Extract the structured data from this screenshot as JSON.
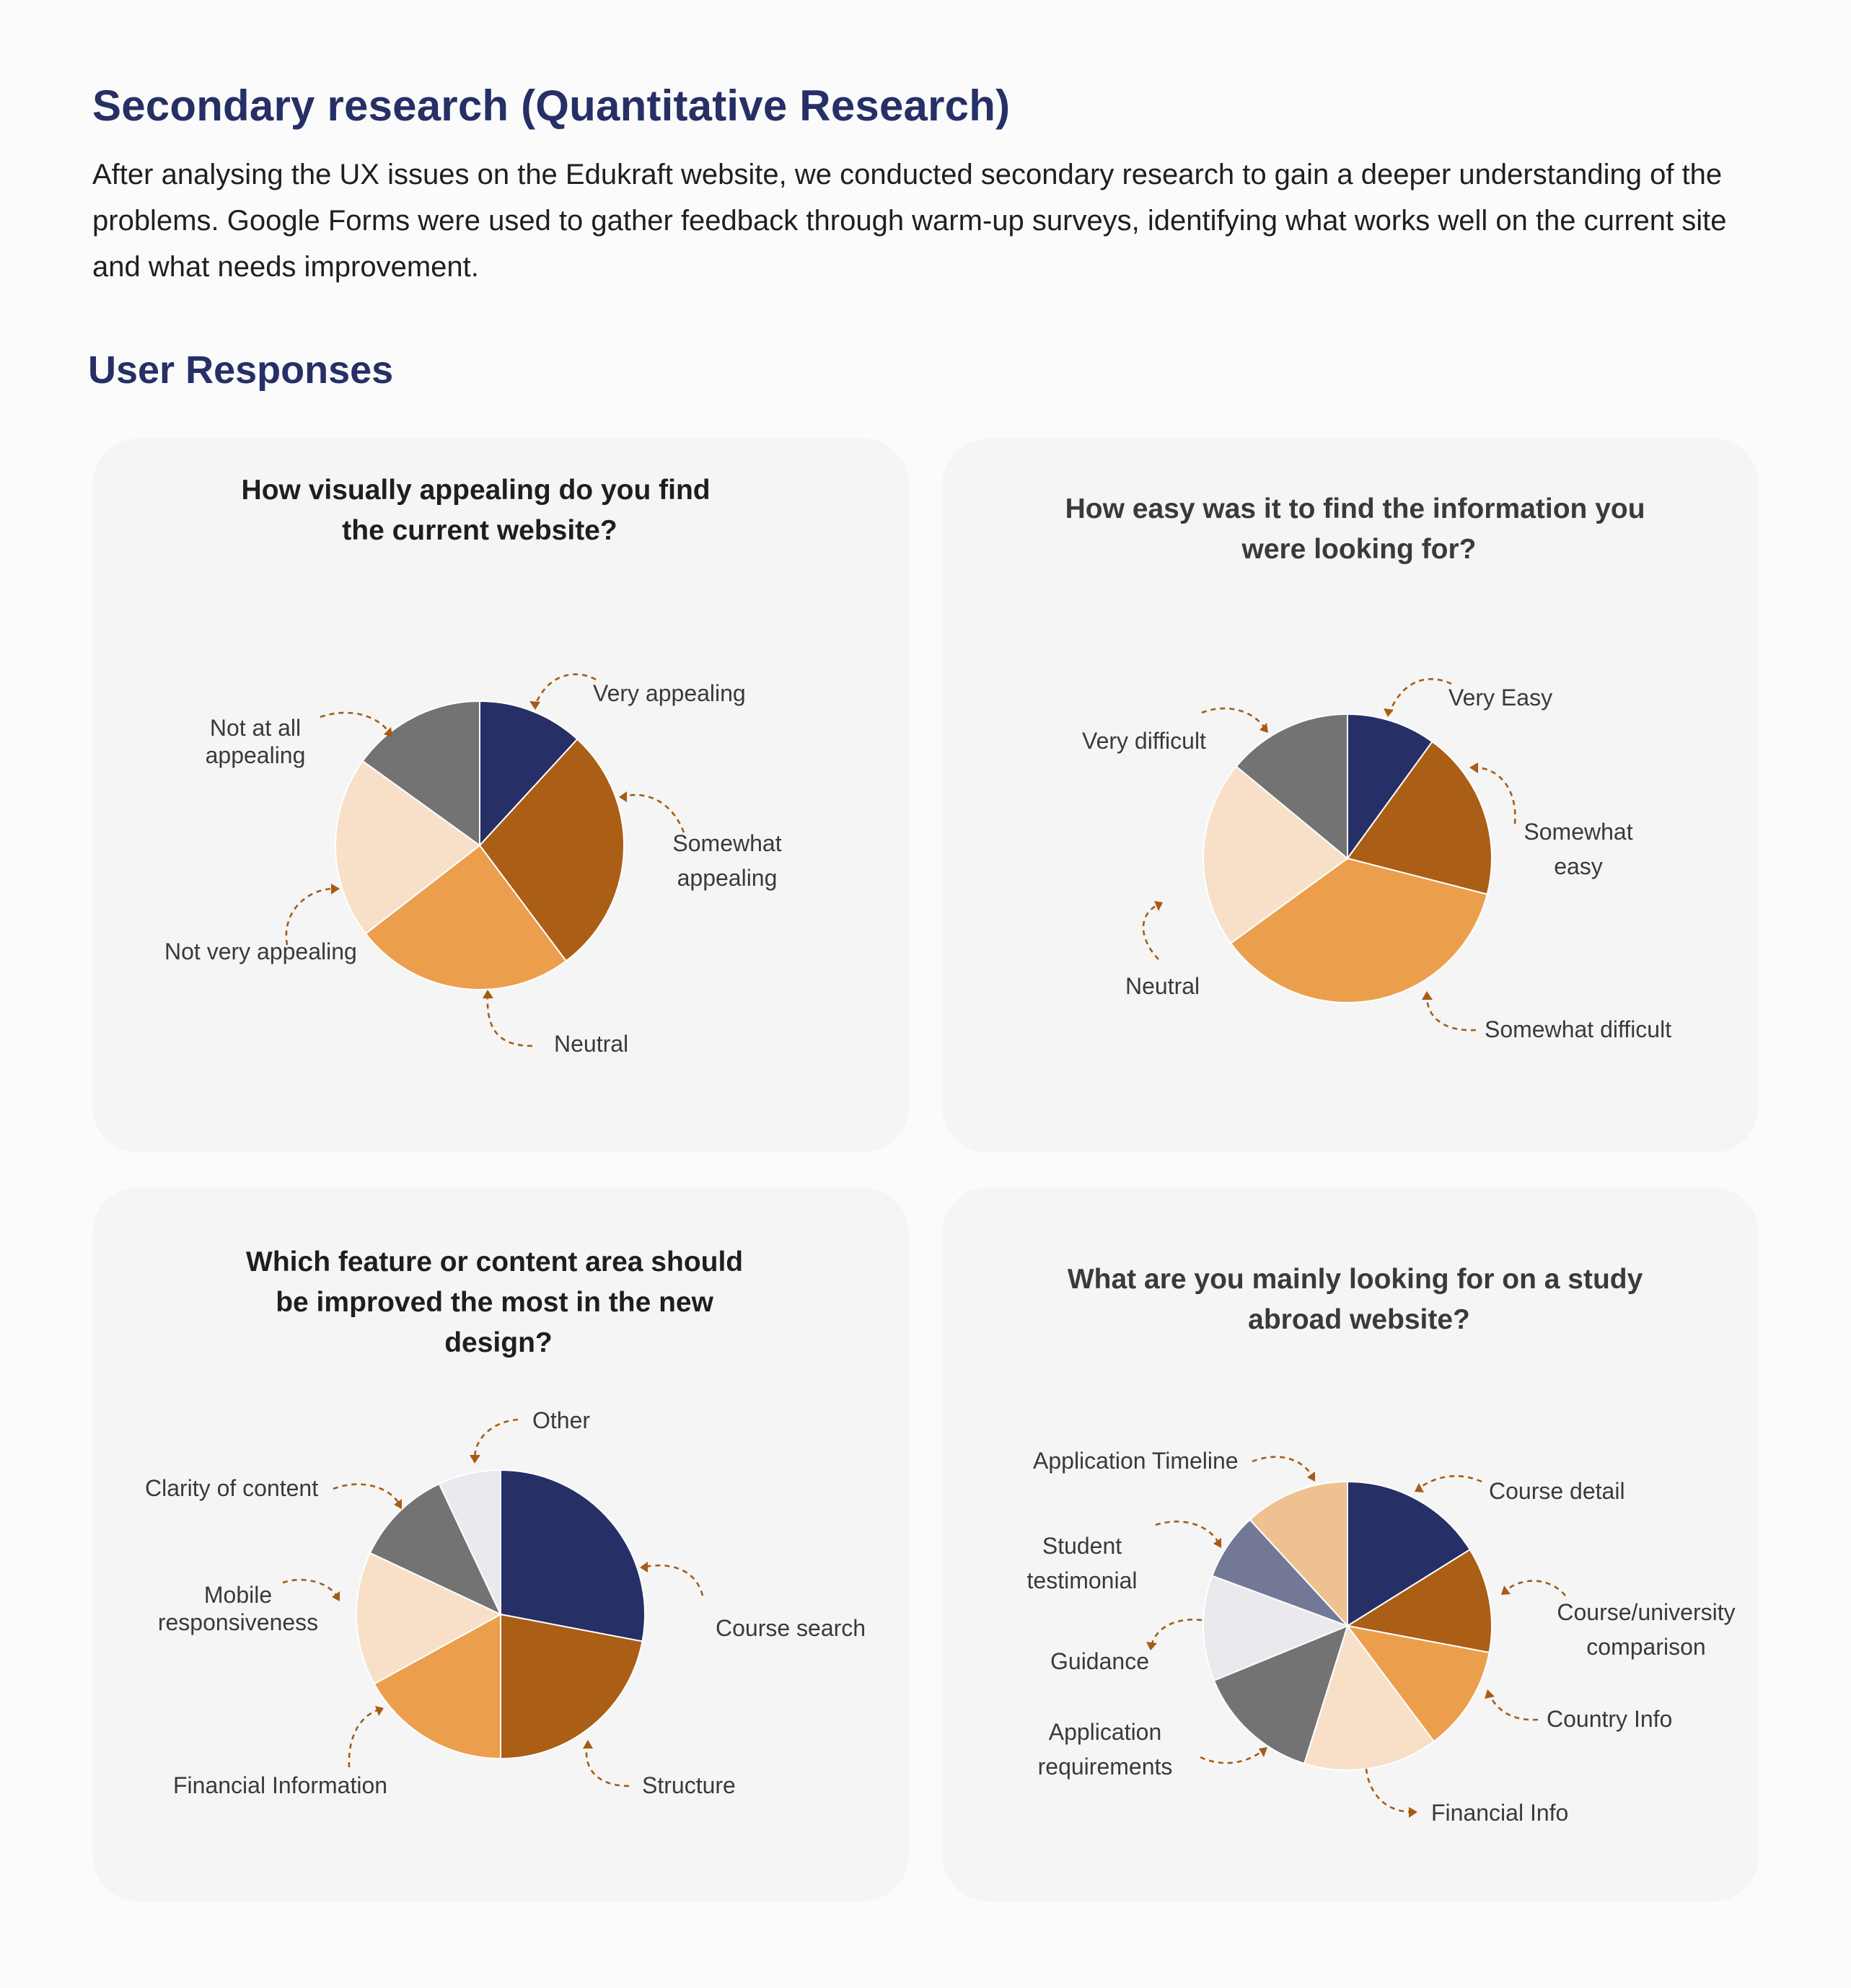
{
  "page": {
    "title": "Secondary research (Quantitative Research)",
    "intro": "After analysing the UX issues on the Edukraft website, we conducted secondary research to gain a deeper understanding of the problems. Google Forms were used to gather feedback through warm-up surveys, identifying what works well on the current site and what needs improvement.",
    "section_title": "User Responses"
  },
  "colors": {
    "navy": "#262f66",
    "brown": "#ab5e15",
    "orange": "#eb9f4d",
    "peach": "#f8e0c8",
    "grey": "#737373",
    "light_grey": "#e9e9ee",
    "tan": "#efc191",
    "slate": "#737896",
    "title": "#262f66",
    "arrow": "#a65c14"
  },
  "chart_data": [
    {
      "type": "pie",
      "title": "How visually appealing do you find the current website?",
      "categories": [
        "Very appealing",
        "Somewhat appealing",
        "Neutral",
        "Not very appealing",
        "Not at all appealing"
      ],
      "values": [
        11,
        26,
        23,
        19,
        14
      ],
      "colors": [
        "#262f66",
        "#ab5e15",
        "#eb9f4d",
        "#f8e0c8",
        "#737373"
      ]
    },
    {
      "type": "pie",
      "title": "How easy was it to find the information you were looking for?",
      "categories": [
        "Very Easy",
        "Somewhat easy",
        "Somewhat difficult",
        "Neutral",
        "Very difficult"
      ],
      "values": [
        10,
        19,
        36,
        21,
        14
      ],
      "colors": [
        "#262f66",
        "#ab5e15",
        "#eb9f4d",
        "#f8e0c8",
        "#737373"
      ]
    },
    {
      "type": "pie",
      "title": "Which feature or content area should be improved the most in the new design?",
      "categories": [
        "Course search",
        "Structure",
        "Financial Information",
        "Mobile responsiveness",
        "Clarity of content",
        "Other"
      ],
      "values": [
        28,
        22,
        17,
        15,
        11,
        7
      ],
      "colors": [
        "#262f66",
        "#ab5e15",
        "#eb9f4d",
        "#f8e0c8",
        "#737373",
        "#e9e9ee"
      ]
    },
    {
      "type": "pie",
      "title": "What are you mainly looking for on a study abroad website?",
      "categories": [
        "Course detail",
        "Course/university comparison",
        "Country Info",
        "Financial Info",
        "Application requirements",
        "Guidance",
        "Student testimonial",
        "Application Timeline"
      ],
      "values": [
        15,
        11,
        11,
        14,
        13,
        11,
        7,
        11
      ],
      "colors": [
        "#262f66",
        "#ab5e15",
        "#eb9f4d",
        "#f8e0c8",
        "#737373",
        "#e9e9ee",
        "#737896",
        "#efc191"
      ]
    }
  ]
}
